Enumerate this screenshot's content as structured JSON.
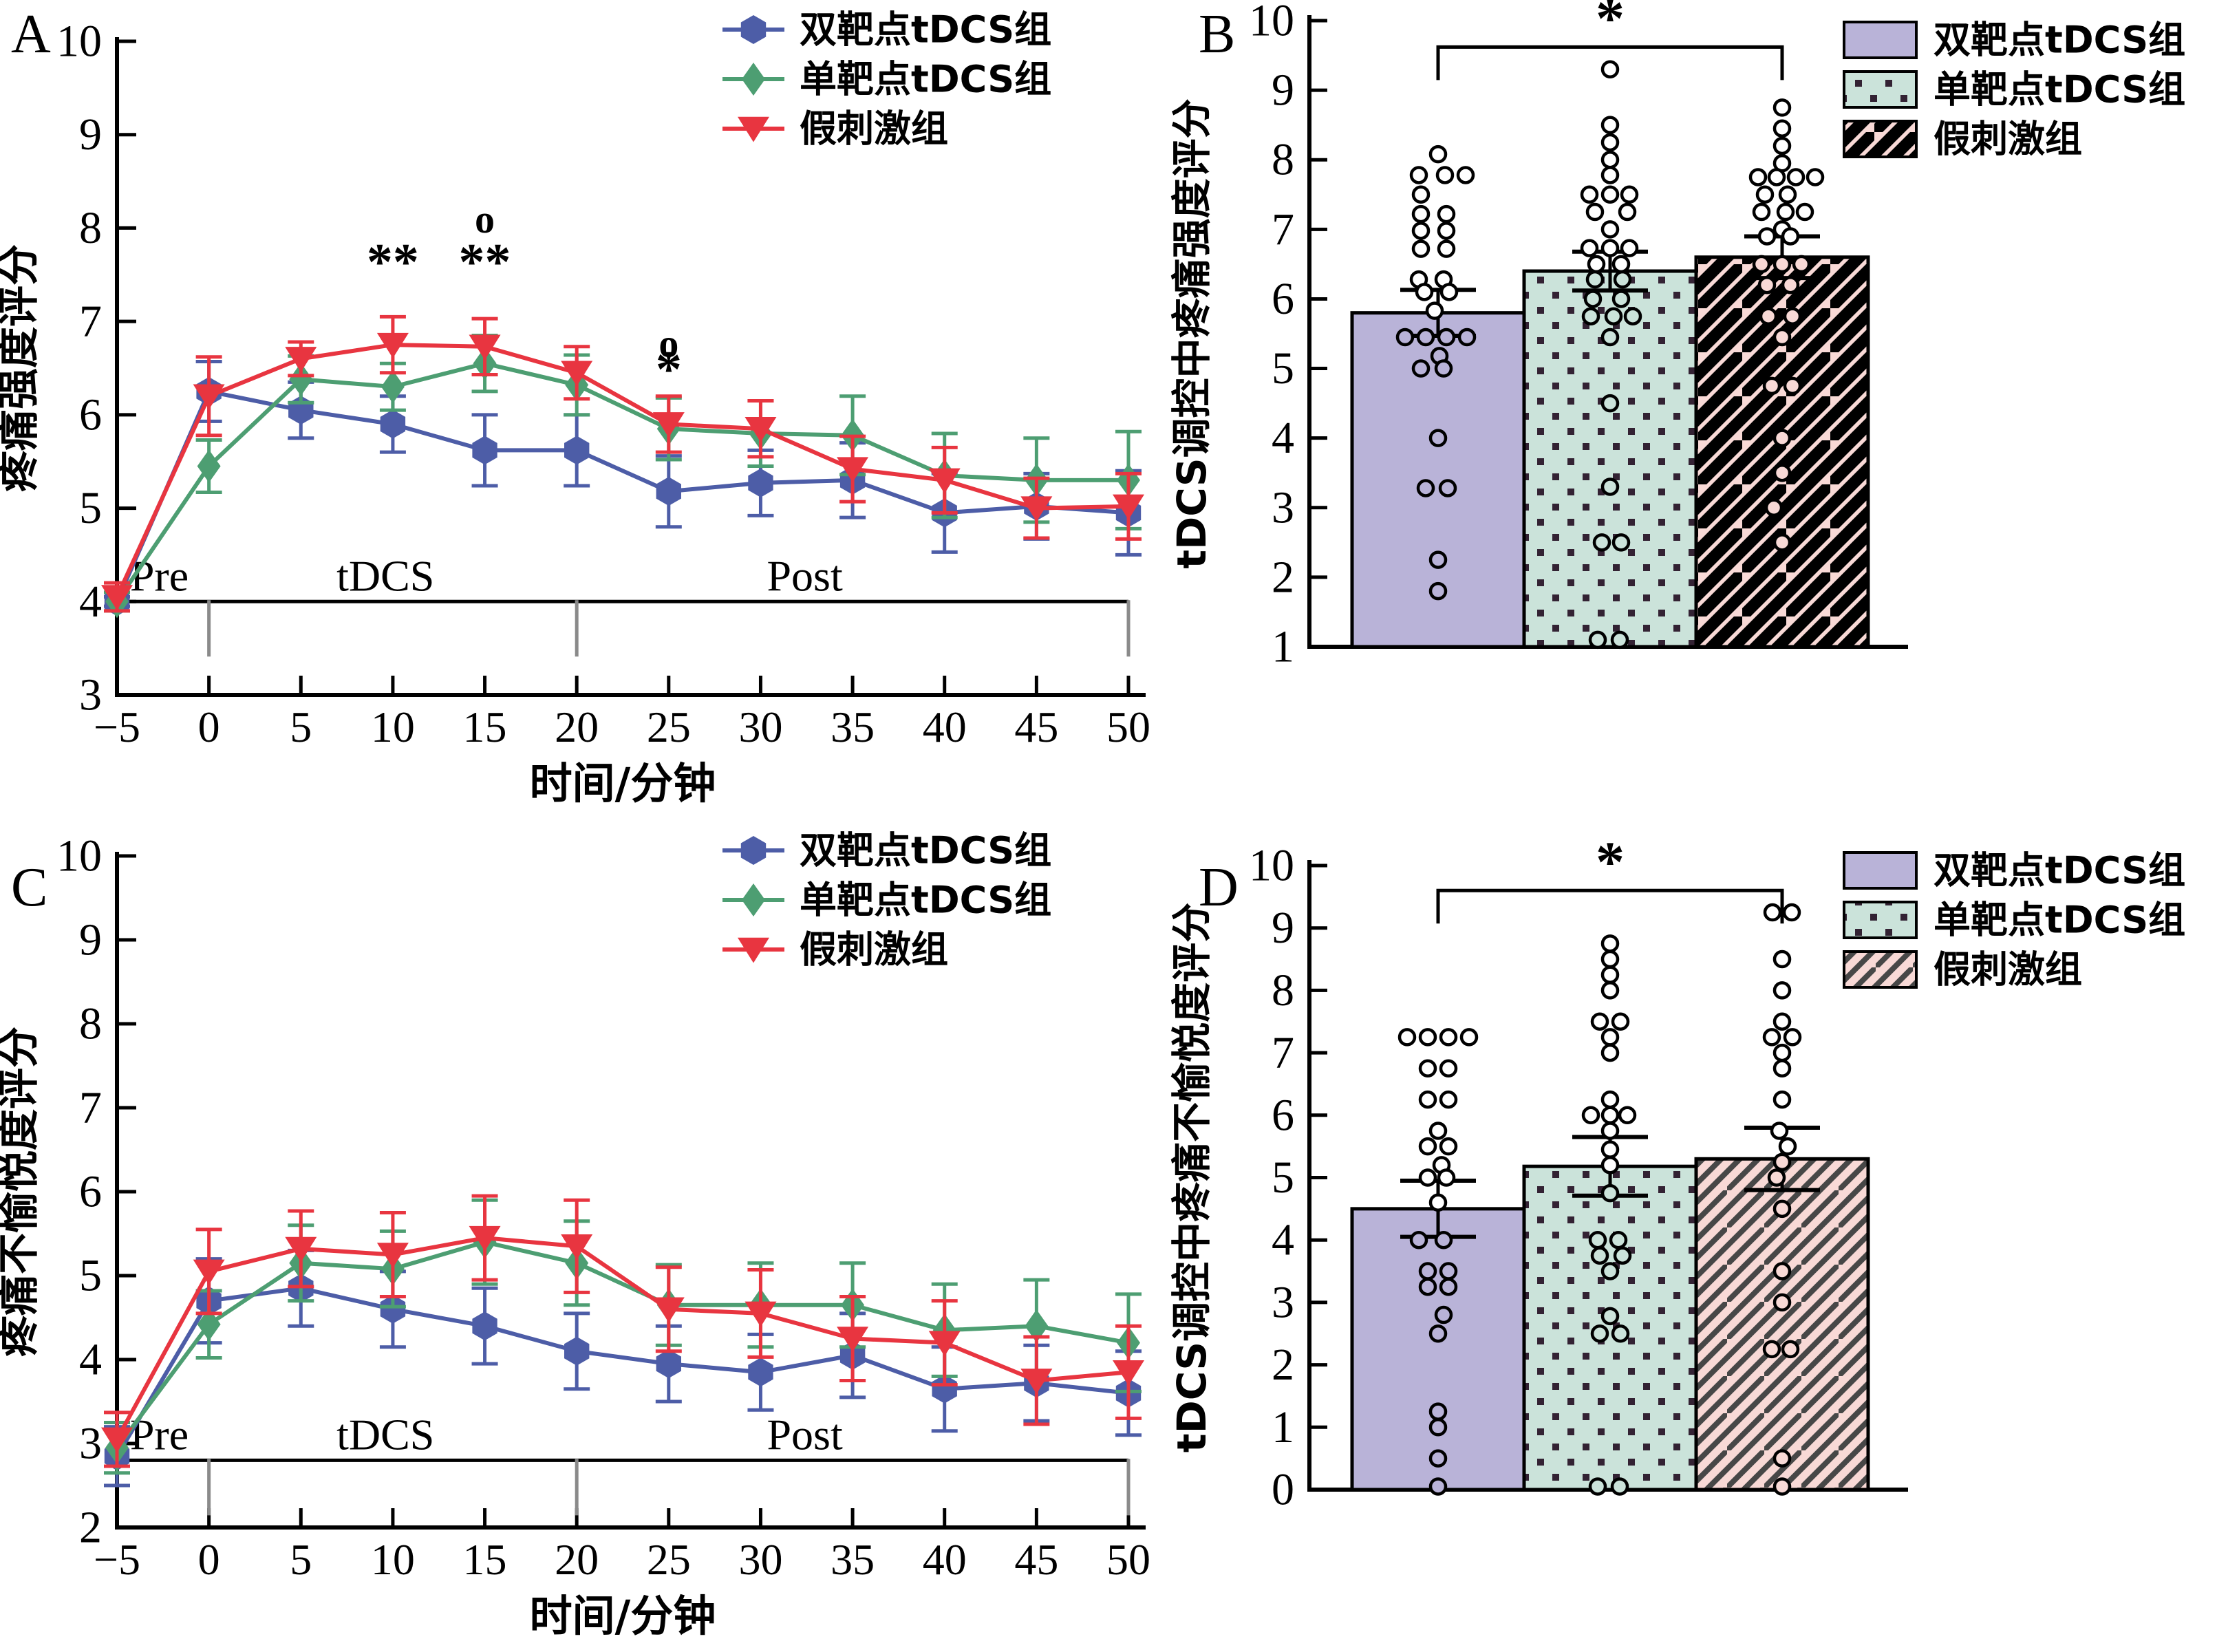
{
  "colors": {
    "blue": "#4d5da7",
    "green": "#4d9e72",
    "red": "#e83540",
    "purple_fill": "#b9b3d8",
    "green_fill": "#cbe3da",
    "pink_fill": "#f8d9d6",
    "dot_ink": "#332233",
    "hatch_black": "#000000",
    "hatch_gray": "#474747",
    "divider_gray": "#8a8a8a"
  },
  "chart_data": [
    {
      "panel": "A",
      "type": "line",
      "x": [
        -5,
        0,
        5,
        10,
        15,
        20,
        25,
        30,
        35,
        40,
        45,
        50
      ],
      "xlim": [
        -5,
        50
      ],
      "ylim": [
        3,
        10
      ],
      "yticks": [
        3,
        4,
        5,
        6,
        7,
        8,
        9,
        10
      ],
      "xlabel": "时间/分钟",
      "ylabel": "疼痛强度评分",
      "legend_position": "top-right-inside",
      "series": [
        {
          "key": "dual-target-tdcs",
          "label": "双靶点tDCS组",
          "color": "blue",
          "marker": "hexagon",
          "values": [
            4.0,
            6.25,
            6.05,
            5.9,
            5.62,
            5.62,
            5.18,
            5.27,
            5.3,
            4.95,
            5.02,
            4.95
          ],
          "errors": [
            0.05,
            0.32,
            0.3,
            0.3,
            0.38,
            0.38,
            0.38,
            0.35,
            0.4,
            0.42,
            0.35,
            0.45
          ]
        },
        {
          "key": "single-target-tdcs",
          "label": "单靶点tDCS组",
          "color": "green",
          "marker": "diamond",
          "values": [
            4.0,
            5.45,
            6.38,
            6.3,
            6.55,
            6.32,
            5.85,
            5.8,
            5.78,
            5.35,
            5.3,
            5.3
          ],
          "errors": [
            0.1,
            0.28,
            0.25,
            0.25,
            0.3,
            0.32,
            0.33,
            0.35,
            0.42,
            0.45,
            0.45,
            0.52
          ]
        },
        {
          "key": "sham",
          "label": "假刺激组",
          "color": "red",
          "marker": "triangle-down",
          "values": [
            4.05,
            6.2,
            6.6,
            6.75,
            6.73,
            6.45,
            5.9,
            5.85,
            5.42,
            5.3,
            5.0,
            5.02
          ],
          "errors": [
            0.15,
            0.42,
            0.18,
            0.3,
            0.3,
            0.28,
            0.3,
            0.3,
            0.35,
            0.35,
            0.32,
            0.35
          ]
        }
      ],
      "phase_line": {
        "y": 4.0,
        "dividers": [
          0,
          20,
          50
        ],
        "labels": [
          {
            "text": "Pre",
            "t": -2.7
          },
          {
            "text": "tDCS",
            "t": 9.6
          },
          {
            "text": "Post",
            "t": 32.4
          }
        ]
      },
      "annotations": [
        {
          "t": 10,
          "v": 7.45,
          "text": "**"
        },
        {
          "t": 15,
          "v": 7.95,
          "text": "o"
        },
        {
          "t": 15,
          "v": 7.45,
          "text": "**"
        },
        {
          "t": 25,
          "v": 6.62,
          "text": "o"
        },
        {
          "t": 25,
          "v": 6.3,
          "text": "*"
        }
      ]
    },
    {
      "panel": "B",
      "type": "bar",
      "ylim": [
        1,
        10
      ],
      "yticks": [
        1,
        2,
        3,
        4,
        5,
        6,
        7,
        8,
        9,
        10
      ],
      "ylabel": "tDCS调控中疼痛强度评分",
      "bars": [
        {
          "key": "dual-target-tdcs",
          "label": "双靶点tDCS组",
          "fill": "purple",
          "mean": 5.8,
          "err": 0.33,
          "points": [
            [
              0,
              8.08
            ],
            [
              -28,
              7.78
            ],
            [
              10,
              7.78
            ],
            [
              40,
              7.78
            ],
            [
              -25,
              7.5
            ],
            [
              -25,
              7.22
            ],
            [
              12,
              7.22
            ],
            [
              -25,
              6.98
            ],
            [
              12,
              6.98
            ],
            [
              -25,
              6.72
            ],
            [
              12,
              6.72
            ],
            [
              -28,
              6.28
            ],
            [
              8,
              6.28
            ],
            [
              -20,
              6.1
            ],
            [
              16,
              6.1
            ],
            [
              -5,
              5.83
            ],
            [
              -48,
              5.45
            ],
            [
              -18,
              5.45
            ],
            [
              12,
              5.45
            ],
            [
              42,
              5.45
            ],
            [
              2,
              5.18
            ],
            [
              -25,
              5.0
            ],
            [
              8,
              5.0
            ],
            [
              0,
              4.0
            ],
            [
              -18,
              3.28
            ],
            [
              14,
              3.28
            ],
            [
              0,
              2.25
            ],
            [
              0,
              1.8
            ]
          ]
        },
        {
          "key": "single-target-tdcs",
          "label": "单靶点tDCS组",
          "fill": "dots",
          "mean": 6.4,
          "err": 0.28,
          "points": [
            [
              0,
              9.3
            ],
            [
              0,
              8.5
            ],
            [
              0,
              8.25
            ],
            [
              0,
              8.0
            ],
            [
              0,
              7.78
            ],
            [
              -30,
              7.5
            ],
            [
              0,
              7.5
            ],
            [
              28,
              7.5
            ],
            [
              -22,
              7.25
            ],
            [
              25,
              7.25
            ],
            [
              0,
              7.0
            ],
            [
              -30,
              6.73
            ],
            [
              0,
              6.73
            ],
            [
              28,
              6.73
            ],
            [
              -20,
              6.5
            ],
            [
              16,
              6.5
            ],
            [
              -22,
              6.28
            ],
            [
              18,
              6.28
            ],
            [
              -25,
              6.0
            ],
            [
              16,
              6.0
            ],
            [
              -28,
              5.75
            ],
            [
              5,
              5.75
            ],
            [
              33,
              5.75
            ],
            [
              0,
              5.45
            ],
            [
              0,
              4.5
            ],
            [
              0,
              3.3
            ],
            [
              -12,
              2.5
            ],
            [
              16,
              2.5
            ],
            [
              -18,
              1.1
            ],
            [
              14,
              1.1
            ]
          ]
        },
        {
          "key": "sham",
          "label": "假刺激组",
          "fill": "hatch",
          "mean": 6.6,
          "err": 0.3,
          "points": [
            [
              0,
              8.75
            ],
            [
              0,
              8.45
            ],
            [
              0,
              8.2
            ],
            [
              0,
              7.95
            ],
            [
              -35,
              7.75
            ],
            [
              -8,
              7.75
            ],
            [
              20,
              7.75
            ],
            [
              48,
              7.75
            ],
            [
              -25,
              7.5
            ],
            [
              8,
              7.5
            ],
            [
              -30,
              7.25
            ],
            [
              5,
              7.25
            ],
            [
              33,
              7.25
            ],
            [
              0,
              7.0
            ],
            [
              -22,
              6.9
            ],
            [
              12,
              6.9
            ],
            [
              -30,
              6.5
            ],
            [
              0,
              6.5
            ],
            [
              28,
              6.5
            ],
            [
              -22,
              6.2
            ],
            [
              12,
              6.2
            ],
            [
              -20,
              5.75
            ],
            [
              15,
              5.75
            ],
            [
              0,
              5.45
            ],
            [
              -15,
              4.75
            ],
            [
              15,
              4.75
            ],
            [
              0,
              4.0
            ],
            [
              0,
              3.5
            ],
            [
              -12,
              3.0
            ],
            [
              0,
              2.5
            ]
          ]
        }
      ],
      "significance": {
        "from": 0,
        "to": 2,
        "label": "*",
        "v": 9.62
      }
    },
    {
      "panel": "C",
      "type": "line",
      "x": [
        -5,
        0,
        5,
        10,
        15,
        20,
        25,
        30,
        35,
        40,
        45,
        50
      ],
      "xlim": [
        -5,
        50
      ],
      "ylim": [
        2,
        10
      ],
      "yticks": [
        2,
        3,
        4,
        5,
        6,
        7,
        8,
        9,
        10
      ],
      "xlabel": "时间/分钟",
      "ylabel": "疼痛不愉悦度评分",
      "legend_position": "top-right-inside",
      "series": [
        {
          "key": "dual-target-tdcs",
          "label": "双靶点tDCS组",
          "color": "blue",
          "marker": "hexagon",
          "values": [
            2.85,
            4.7,
            4.85,
            4.6,
            4.4,
            4.1,
            3.95,
            3.85,
            4.05,
            3.65,
            3.72,
            3.6
          ],
          "errors": [
            0.35,
            0.5,
            0.45,
            0.45,
            0.45,
            0.45,
            0.45,
            0.45,
            0.5,
            0.5,
            0.45,
            0.5
          ]
        },
        {
          "key": "single-target-tdcs",
          "label": "单靶点tDCS组",
          "color": "green",
          "marker": "diamond",
          "values": [
            2.95,
            4.42,
            5.15,
            5.08,
            5.4,
            5.15,
            4.65,
            4.65,
            4.65,
            4.35,
            4.4,
            4.2
          ],
          "errors": [
            0.3,
            0.4,
            0.45,
            0.45,
            0.5,
            0.5,
            0.48,
            0.5,
            0.5,
            0.55,
            0.55,
            0.58
          ]
        },
        {
          "key": "sham",
          "label": "假刺激组",
          "color": "red",
          "marker": "triangle-down",
          "values": [
            3.05,
            5.05,
            5.32,
            5.25,
            5.45,
            5.35,
            4.6,
            4.55,
            4.25,
            4.2,
            3.75,
            3.85
          ],
          "errors": [
            0.32,
            0.5,
            0.45,
            0.5,
            0.5,
            0.55,
            0.5,
            0.52,
            0.5,
            0.5,
            0.52,
            0.55
          ]
        }
      ],
      "phase_line": {
        "y": 2.8,
        "dividers": [
          0,
          20,
          50
        ],
        "labels": [
          {
            "text": "Pre",
            "t": -2.7
          },
          {
            "text": "tDCS",
            "t": 9.6
          },
          {
            "text": "Post",
            "t": 32.4
          }
        ]
      },
      "annotations": []
    },
    {
      "panel": "D",
      "type": "bar",
      "ylim": [
        0,
        10
      ],
      "yticks": [
        0,
        1,
        2,
        3,
        4,
        5,
        6,
        7,
        8,
        9,
        10
      ],
      "ylabel": "tDCS调控中疼痛不愉悦度评分",
      "bars": [
        {
          "key": "dual-target-tdcs",
          "label": "双靶点tDCS组",
          "fill": "purple",
          "mean": 4.5,
          "err": 0.45,
          "points": [
            [
              -45,
              7.25
            ],
            [
              -15,
              7.25
            ],
            [
              15,
              7.25
            ],
            [
              45,
              7.25
            ],
            [
              -15,
              6.75
            ],
            [
              15,
              6.75
            ],
            [
              -15,
              6.25
            ],
            [
              15,
              6.25
            ],
            [
              0,
              5.75
            ],
            [
              -15,
              5.5
            ],
            [
              15,
              5.5
            ],
            [
              5,
              5.2
            ],
            [
              -15,
              5.0
            ],
            [
              12,
              5.0
            ],
            [
              0,
              4.6
            ],
            [
              -28,
              4.0
            ],
            [
              8,
              4.0
            ],
            [
              -15,
              3.5
            ],
            [
              15,
              3.5
            ],
            [
              -15,
              3.25
            ],
            [
              15,
              3.25
            ],
            [
              8,
              2.8
            ],
            [
              0,
              2.5
            ],
            [
              0,
              1.25
            ],
            [
              0,
              1.0
            ],
            [
              0,
              0.5
            ],
            [
              0,
              0.05
            ]
          ]
        },
        {
          "key": "single-target-tdcs",
          "label": "单靶点tDCS组",
          "fill": "dots",
          "mean": 5.18,
          "err": 0.47,
          "points": [
            [
              0,
              8.75
            ],
            [
              0,
              8.5
            ],
            [
              0,
              8.25
            ],
            [
              0,
              8.0
            ],
            [
              -15,
              7.5
            ],
            [
              15,
              7.5
            ],
            [
              0,
              7.25
            ],
            [
              0,
              7.0
            ],
            [
              0,
              6.25
            ],
            [
              -28,
              6.0
            ],
            [
              0,
              6.0
            ],
            [
              25,
              6.0
            ],
            [
              0,
              5.75
            ],
            [
              0,
              5.45
            ],
            [
              0,
              5.2
            ],
            [
              0,
              4.75
            ],
            [
              -18,
              4.0
            ],
            [
              12,
              4.0
            ],
            [
              -15,
              3.75
            ],
            [
              18,
              3.75
            ],
            [
              0,
              3.5
            ],
            [
              0,
              2.78
            ],
            [
              -15,
              2.5
            ],
            [
              15,
              2.5
            ],
            [
              -18,
              0.05
            ],
            [
              14,
              0.05
            ]
          ]
        },
        {
          "key": "sham",
          "label": "假刺激组",
          "fill": "hatch",
          "mean": 5.3,
          "err": 0.5,
          "points": [
            [
              -14,
              9.25
            ],
            [
              14,
              9.25
            ],
            [
              0,
              8.5
            ],
            [
              0,
              8.0
            ],
            [
              0,
              7.5
            ],
            [
              -15,
              7.25
            ],
            [
              15,
              7.25
            ],
            [
              0,
              7.0
            ],
            [
              0,
              6.75
            ],
            [
              0,
              6.25
            ],
            [
              -4,
              5.75
            ],
            [
              8,
              5.5
            ],
            [
              0,
              5.25
            ],
            [
              -8,
              5.0
            ],
            [
              0,
              4.5
            ],
            [
              0,
              3.5
            ],
            [
              0,
              3.0
            ],
            [
              -15,
              2.25
            ],
            [
              12,
              2.25
            ],
            [
              0,
              0.5
            ],
            [
              0,
              0.05
            ]
          ]
        }
      ],
      "significance": {
        "from": 0,
        "to": 2,
        "label": "*",
        "v": 9.6
      }
    }
  ]
}
